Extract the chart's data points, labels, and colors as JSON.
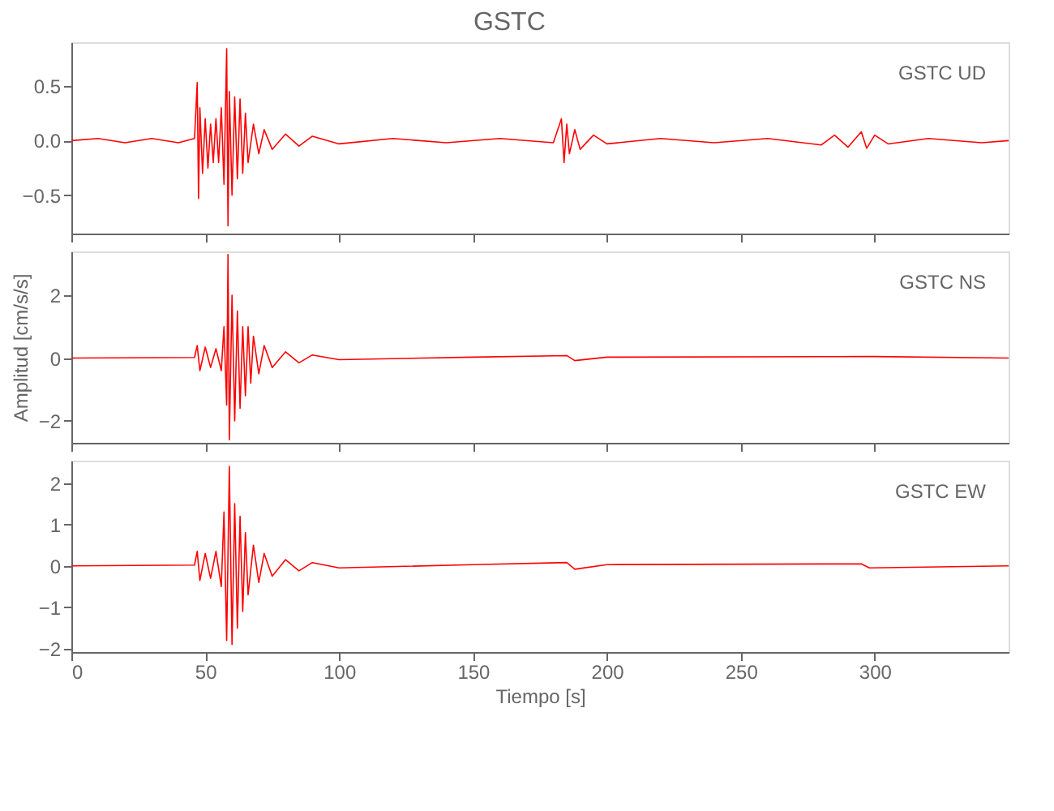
{
  "chart_data": [
    {
      "type": "line",
      "title": "GSTC",
      "annotations": [
        "GSTC UD"
      ],
      "tick_labels": "y",
      "grid": false,
      "marker": "none",
      "line_style": "solid",
      "xlim": [
        0,
        350
      ],
      "xticks": [
        0,
        50,
        100,
        150,
        200,
        250,
        300
      ],
      "ylim": [
        -0.85,
        0.9
      ],
      "yticks": [
        {
          "value": -0.5,
          "label": "−0.5"
        },
        {
          "value": 0,
          "label": "0.0"
        },
        0.5
      ],
      "series": [
        {
          "color": "#ff0000",
          "x": [
            0,
            10,
            20,
            30,
            40,
            46,
            47,
            47.5,
            48,
            49,
            50,
            51,
            52,
            53,
            54,
            55,
            56,
            57,
            58,
            58.5,
            59,
            60,
            61,
            62,
            63,
            64,
            65,
            66,
            68,
            70,
            72,
            75,
            80,
            85,
            90,
            100,
            120,
            140,
            160,
            180,
            183,
            184,
            185,
            186,
            188,
            190,
            195,
            200,
            220,
            240,
            260,
            280,
            285,
            290,
            295,
            297,
            300,
            305,
            320,
            340,
            350
          ],
          "values": [
            0,
            0.02,
            -0.02,
            0.02,
            -0.02,
            0.02,
            0.53,
            -0.53,
            0.3,
            -0.3,
            0.2,
            -0.25,
            0.15,
            -0.2,
            0.2,
            -0.2,
            0.3,
            -0.4,
            0.84,
            -0.78,
            0.45,
            -0.5,
            0.4,
            -0.35,
            0.38,
            -0.3,
            0.25,
            -0.2,
            0.15,
            -0.12,
            0.1,
            -0.08,
            0.06,
            -0.05,
            0.04,
            -0.03,
            0.02,
            -0.02,
            0.02,
            -0.02,
            0.2,
            -0.2,
            0.15,
            -0.12,
            0.1,
            -0.08,
            0.05,
            -0.03,
            0.02,
            -0.02,
            0.02,
            -0.04,
            0.05,
            -0.06,
            0.08,
            -0.07,
            0.05,
            -0.03,
            0.02,
            -0.02,
            0
          ]
        }
      ]
    },
    {
      "type": "line",
      "ylabel": "Amplitud [cm/s/s]",
      "annotations": [
        "GSTC NS"
      ],
      "tick_labels": "y",
      "grid": false,
      "marker": "none",
      "line_style": "solid",
      "xlim": [
        0,
        350
      ],
      "xticks": [
        0,
        50,
        100,
        150,
        200,
        250,
        300
      ],
      "ylim": [
        -2.7,
        3.4
      ],
      "yticks": [
        {
          "value": -2,
          "label": "−2"
        },
        0,
        2
      ],
      "series": [
        {
          "color": "#ff0000",
          "x": [
            0,
            46,
            47,
            48,
            50,
            52,
            54,
            56,
            57,
            58,
            58.5,
            59,
            60,
            61,
            62,
            63,
            64,
            65,
            66,
            67,
            68,
            70,
            72,
            75,
            80,
            85,
            90,
            100,
            150,
            185,
            188,
            200,
            300,
            350
          ],
          "values": [
            0,
            0.02,
            0.4,
            -0.4,
            0.35,
            -0.3,
            0.3,
            -0.4,
            1.0,
            -1.5,
            3.3,
            -2.6,
            2.0,
            -2.0,
            1.5,
            -1.6,
            1.0,
            -1.2,
            1.0,
            -0.8,
            0.7,
            -0.5,
            0.4,
            -0.3,
            0.2,
            -0.15,
            0.1,
            -0.05,
            0.03,
            0.08,
            -0.08,
            0.03,
            0.05,
            0
          ]
        }
      ]
    },
    {
      "type": "line",
      "xlabel": "Tiempo [s]",
      "annotations": [
        "GSTC EW"
      ],
      "grid": false,
      "marker": "none",
      "line_style": "solid",
      "xlim": [
        0,
        350
      ],
      "xticks": [
        0,
        50,
        100,
        150,
        200,
        250,
        300
      ],
      "ylim": [
        -2.08,
        2.54
      ],
      "yticks": [
        {
          "value": -2,
          "label": "−2"
        },
        {
          "value": -1,
          "label": "−1"
        },
        0,
        1,
        2
      ],
      "series": [
        {
          "color": "#ff0000",
          "x": [
            0,
            46,
            47,
            48,
            50,
            52,
            54,
            56,
            57,
            58,
            59,
            60,
            61,
            62,
            63,
            64,
            65,
            66,
            68,
            70,
            72,
            75,
            80,
            85,
            90,
            100,
            150,
            185,
            188,
            200,
            295,
            298,
            350
          ],
          "values": [
            0,
            0.02,
            0.35,
            -0.35,
            0.3,
            -0.3,
            0.35,
            -0.5,
            1.3,
            -1.8,
            2.4,
            -1.9,
            1.5,
            -1.5,
            1.2,
            -1.1,
            0.8,
            -0.7,
            0.5,
            -0.4,
            0.3,
            -0.25,
            0.15,
            -0.12,
            0.08,
            -0.05,
            0.03,
            0.08,
            -0.08,
            0.03,
            0.05,
            -0.05,
            0
          ]
        }
      ]
    }
  ]
}
